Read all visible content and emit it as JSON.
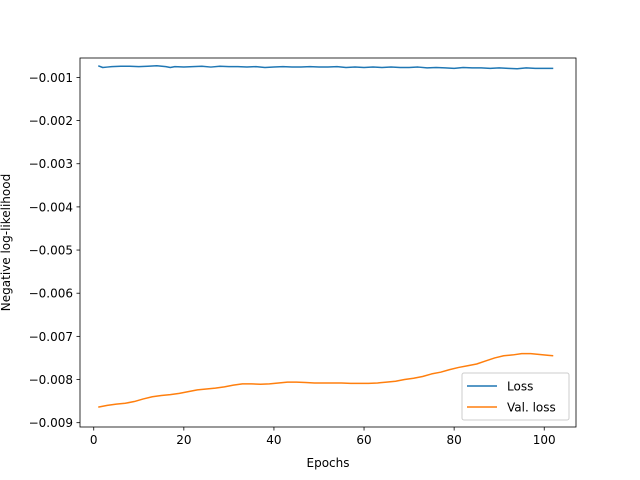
{
  "chart_data": {
    "type": "line",
    "title": "",
    "xlabel": "Epochs",
    "ylabel": "Negative log-likelihood",
    "xlim": [
      -3.05,
      107.05
    ],
    "ylim": [
      -0.0091,
      -0.00055
    ],
    "xticks": [
      0,
      20,
      40,
      60,
      80,
      100
    ],
    "xtick_labels": [
      "0",
      "20",
      "40",
      "60",
      "80",
      "100"
    ],
    "yticks": [
      -0.009,
      -0.008,
      -0.007,
      -0.006,
      -0.005,
      -0.004,
      -0.003,
      -0.002,
      -0.001
    ],
    "ytick_labels": [
      "−0.009",
      "−0.008",
      "−0.007",
      "−0.006",
      "−0.005",
      "−0.004",
      "−0.003",
      "−0.002",
      "−0.001"
    ],
    "grid": false,
    "legend_position": "lower-right",
    "series": [
      {
        "name": "Loss",
        "color": "#1f77b4",
        "x": [
          1,
          2,
          3,
          4,
          6,
          8,
          10,
          12,
          14,
          16,
          17,
          18,
          20,
          22,
          24,
          26,
          28,
          30,
          32,
          34,
          36,
          38,
          40,
          42,
          44,
          46,
          48,
          50,
          52,
          54,
          56,
          58,
          60,
          62,
          64,
          66,
          68,
          70,
          72,
          74,
          76,
          78,
          80,
          82,
          84,
          86,
          88,
          90,
          92,
          94,
          96,
          98,
          100,
          102
        ],
        "y": [
          -0.00073,
          -0.00077,
          -0.00076,
          -0.00075,
          -0.00074,
          -0.00074,
          -0.00075,
          -0.00074,
          -0.00073,
          -0.00075,
          -0.00077,
          -0.00075,
          -0.00076,
          -0.00075,
          -0.00074,
          -0.00076,
          -0.00074,
          -0.00075,
          -0.00075,
          -0.00076,
          -0.00075,
          -0.00077,
          -0.00076,
          -0.00075,
          -0.00076,
          -0.00076,
          -0.00075,
          -0.00076,
          -0.00076,
          -0.00075,
          -0.00077,
          -0.00076,
          -0.00077,
          -0.00076,
          -0.00077,
          -0.00076,
          -0.00077,
          -0.00077,
          -0.00076,
          -0.00078,
          -0.00077,
          -0.00078,
          -0.00079,
          -0.00077,
          -0.00078,
          -0.00078,
          -0.00079,
          -0.00078,
          -0.00079,
          -0.0008,
          -0.00078,
          -0.00079,
          -0.00079,
          -0.00079
        ]
      },
      {
        "name": "Val. loss",
        "color": "#ff7f0e",
        "x": [
          1,
          3,
          5,
          7,
          9,
          11,
          13,
          15,
          17,
          19,
          21,
          23,
          25,
          27,
          29,
          31,
          33,
          35,
          37,
          39,
          41,
          43,
          45,
          47,
          49,
          51,
          53,
          55,
          57,
          59,
          61,
          63,
          65,
          67,
          69,
          71,
          73,
          75,
          77,
          79,
          81,
          83,
          85,
          87,
          89,
          91,
          93,
          95,
          97,
          99,
          101,
          102
        ],
        "y": [
          -0.00864,
          -0.0086,
          -0.00857,
          -0.00855,
          -0.00851,
          -0.00845,
          -0.0084,
          -0.00837,
          -0.00835,
          -0.00832,
          -0.00828,
          -0.00824,
          -0.00822,
          -0.0082,
          -0.00817,
          -0.00813,
          -0.0081,
          -0.0081,
          -0.00811,
          -0.0081,
          -0.00808,
          -0.00806,
          -0.00806,
          -0.00807,
          -0.00808,
          -0.00808,
          -0.00808,
          -0.00808,
          -0.00809,
          -0.00809,
          -0.00809,
          -0.00808,
          -0.00806,
          -0.00804,
          -0.008,
          -0.00797,
          -0.00793,
          -0.00787,
          -0.00783,
          -0.00777,
          -0.00772,
          -0.00768,
          -0.00764,
          -0.00757,
          -0.0075,
          -0.00745,
          -0.00743,
          -0.0074,
          -0.0074,
          -0.00742,
          -0.00744,
          -0.00745
        ]
      }
    ]
  }
}
